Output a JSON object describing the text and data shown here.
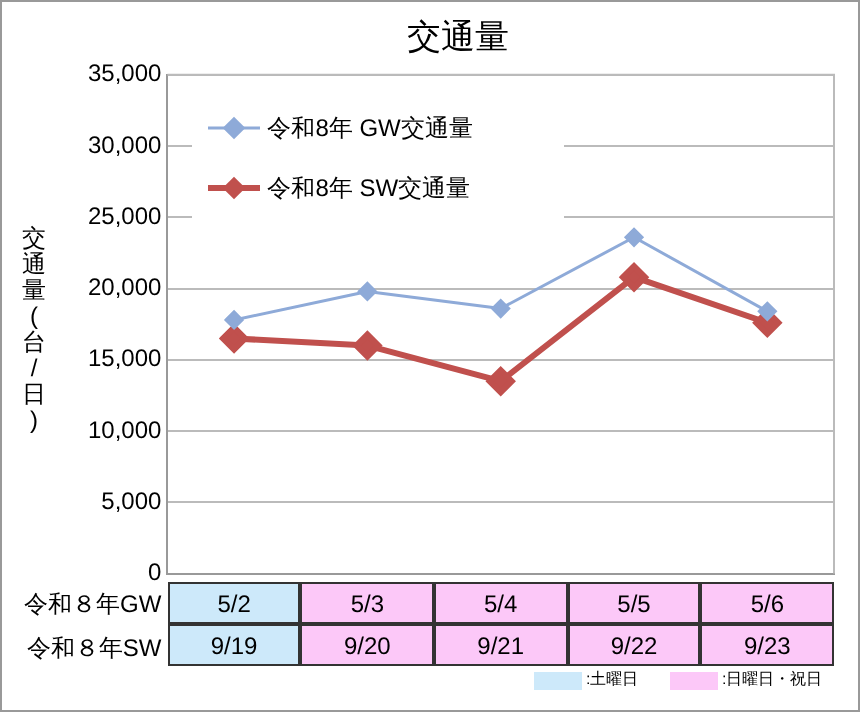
{
  "chart_data": {
    "type": "line",
    "title": "交通量",
    "ylabel": "交通量(台/日)",
    "categories": [
      "5/2",
      "5/3",
      "5/4",
      "5/5",
      "5/6"
    ],
    "series": [
      {
        "name": "令和8年 GW交通量",
        "color": "#8eaad8",
        "values": [
          17800,
          19800,
          18600,
          23600,
          18400
        ]
      },
      {
        "name": "令和8年 SW交通量",
        "color": "#c0504d",
        "values": [
          16500,
          16000,
          13500,
          20800,
          17600
        ]
      }
    ],
    "ylim": [
      0,
      35000
    ],
    "yticks": [
      {
        "value": 0,
        "label": "0"
      },
      {
        "value": 5000,
        "label": "5,000"
      },
      {
        "value": 10000,
        "label": "10,000"
      },
      {
        "value": 15000,
        "label": "15,000"
      },
      {
        "value": 20000,
        "label": "20,000"
      },
      {
        "value": 25000,
        "label": "25,000"
      },
      {
        "value": 30000,
        "label": "30,000"
      },
      {
        "value": 35000,
        "label": "35,000"
      }
    ],
    "grid": "y",
    "legend": "top left",
    "marker": "diamond",
    "line_style": "solid",
    "annotations": [
      "令和８年GW",
      "令和８年SW",
      "9/19",
      "9/20",
      "9/21",
      "9/22",
      "9/23",
      ":土曜日",
      ":日曜日・祝日"
    ]
  }
}
